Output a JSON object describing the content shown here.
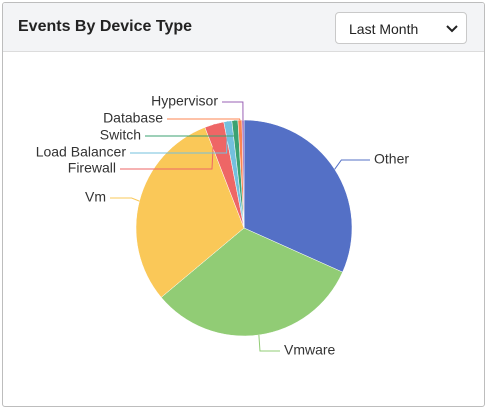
{
  "header": {
    "dropdown": "Last Month"
  },
  "chart_data": {
    "type": "pie",
    "title": "Events By Device Type",
    "categories": [
      "Other",
      "Vmware",
      "Vm",
      "Firewall",
      "Load Balancer",
      "Switch",
      "Database",
      "Hypervisor"
    ],
    "values": [
      31.7,
      32.2,
      30.2,
      2.9,
      1.2,
      0.9,
      0.6,
      0.3
    ],
    "colors": [
      "#5470c6",
      "#91cc75",
      "#fac858",
      "#ee6666",
      "#73c0de",
      "#3ba272",
      "#fc8452",
      "#9a60b4"
    ]
  }
}
